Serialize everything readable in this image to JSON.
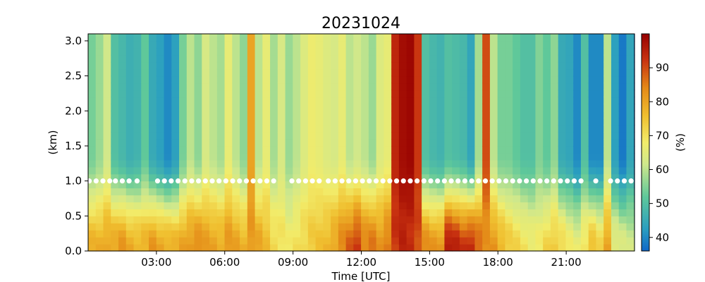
{
  "chart_data": {
    "type": "heatmap",
    "title": "20231024",
    "xlabel": "Time [UTC]",
    "ylabel": "(km)",
    "colorbar_label": "(%)",
    "xlim_hours": [
      0,
      24
    ],
    "ylim": [
      0,
      3.1
    ],
    "x_ticks": [
      {
        "hour": 3,
        "label": "03:00"
      },
      {
        "hour": 6,
        "label": "06:00"
      },
      {
        "hour": 9,
        "label": "09:00"
      },
      {
        "hour": 12,
        "label": "12:00"
      },
      {
        "hour": 15,
        "label": "15:00"
      },
      {
        "hour": 18,
        "label": "18:00"
      },
      {
        "hour": 21,
        "label": "21:00"
      }
    ],
    "y_ticks": [
      {
        "value": 0,
        "label": "0.0"
      },
      {
        "value": 0.5,
        "label": "0.5"
      },
      {
        "value": 1.0,
        "label": "1.0"
      },
      {
        "value": 1.5,
        "label": "1.5"
      },
      {
        "value": 2.0,
        "label": "2.0"
      },
      {
        "value": 2.5,
        "label": "2.5"
      },
      {
        "value": 3.0,
        "label": "3.0"
      }
    ],
    "colorbar": {
      "range": [
        36,
        100
      ],
      "colormap": "jet-like (blue-teal-green-yellow-orange-red-darkred)",
      "ticks": [
        {
          "value": 40,
          "label": "40"
        },
        {
          "value": 50,
          "label": "50"
        },
        {
          "value": 60,
          "label": "60"
        },
        {
          "value": 70,
          "label": "70"
        },
        {
          "value": 80,
          "label": "80"
        },
        {
          "value": 90,
          "label": "90"
        }
      ]
    },
    "time_step_hours": 0.333,
    "heights_km": [
      0.05,
      0.15,
      0.25,
      0.35,
      0.45,
      0.55,
      0.65,
      0.75,
      0.85,
      0.95,
      1.05,
      1.15,
      1.25,
      1.35,
      1.45,
      1.55,
      1.65,
      1.75,
      1.85,
      1.95,
      2.05,
      2.15,
      2.25,
      2.35,
      2.45,
      2.55,
      2.65,
      2.75,
      2.85,
      2.95,
      3.05
    ],
    "profile_top_pct": [
      54,
      57,
      62,
      50,
      48,
      46,
      47,
      52,
      45,
      43,
      40,
      43,
      54,
      60,
      56,
      63,
      60,
      58,
      66,
      60,
      56,
      80,
      60,
      66,
      58,
      63,
      57,
      60,
      64,
      67,
      66,
      64,
      63,
      66,
      60,
      62,
      60,
      57,
      64,
      66,
      94,
      98,
      99,
      92,
      50,
      48,
      47,
      50,
      49,
      48,
      44,
      58,
      90,
      60,
      54,
      54,
      52,
      50,
      50,
      55,
      52,
      56,
      45,
      44,
      40,
      50,
      40,
      40,
      60,
      43,
      38,
      44,
      35,
      50,
      60,
      56,
      52,
      44,
      40,
      40,
      43,
      42
    ],
    "profile_bottom_pct": [
      78,
      78,
      80,
      80,
      82,
      79,
      78,
      78,
      82,
      80,
      79,
      78,
      80,
      82,
      84,
      81,
      80,
      79,
      82,
      80,
      78,
      82,
      80,
      76,
      72,
      70,
      68,
      70,
      72,
      74,
      75,
      77,
      80,
      84,
      88,
      92,
      85,
      86,
      82,
      86,
      92,
      94,
      93,
      90,
      84,
      82,
      82,
      97,
      95,
      92,
      94,
      88,
      82,
      82,
      78,
      74,
      72,
      70,
      68,
      68,
      72,
      74,
      72,
      68,
      66,
      70,
      76,
      72,
      80,
      66,
      64,
      62,
      60,
      58,
      56,
      56,
      58,
      60,
      60,
      58,
      58,
      60
    ],
    "marker_height_km": 1.0,
    "marker_times_hours": [
      0.05,
      0.35,
      0.65,
      0.95,
      1.2,
      1.5,
      1.8,
      2.15,
      3.05,
      3.35,
      3.65,
      3.95,
      4.25,
      4.55,
      4.85,
      5.15,
      5.45,
      5.75,
      6.05,
      6.35,
      6.65,
      6.95,
      7.25,
      7.55,
      7.85,
      8.15,
      8.95,
      9.25,
      9.55,
      9.85,
      10.15,
      10.55,
      10.85,
      11.15,
      11.45,
      11.75,
      12.05,
      12.35,
      12.65,
      12.95,
      13.25,
      13.55,
      13.85,
      14.15,
      14.45,
      14.75,
      15.05,
      15.35,
      15.65,
      15.95,
      16.25,
      16.55,
      16.85,
      17.15,
      17.45,
      17.75,
      18.05,
      18.35,
      18.65,
      18.95,
      19.25,
      19.55,
      19.85,
      20.15,
      20.45,
      20.75,
      21.05,
      21.35,
      21.65,
      22.3,
      22.95,
      23.25,
      23.55,
      23.85
    ]
  }
}
